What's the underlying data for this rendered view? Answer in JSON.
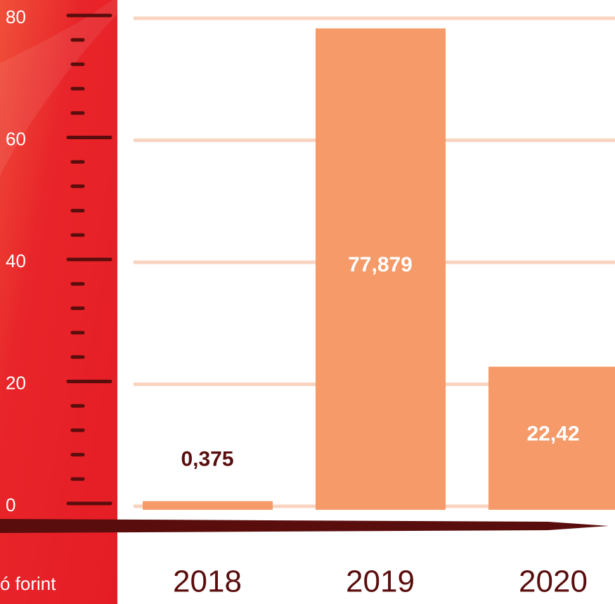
{
  "chart_data": {
    "type": "bar",
    "categories": [
      "2018",
      "2019",
      "2020"
    ],
    "values": [
      0.375,
      77.879,
      22.42
    ],
    "value_labels": [
      "0,375",
      "77,879",
      "22,42"
    ],
    "color": "#f59a68",
    "ylim": [
      0,
      80
    ],
    "yticks": [
      0,
      20,
      40,
      60,
      80
    ],
    "minor_yticks": [
      4,
      8,
      12,
      16,
      24,
      28,
      32,
      36,
      44,
      48,
      52,
      56,
      64,
      68,
      72,
      76
    ],
    "y_axis_label": "ó forint",
    "grid": true
  }
}
